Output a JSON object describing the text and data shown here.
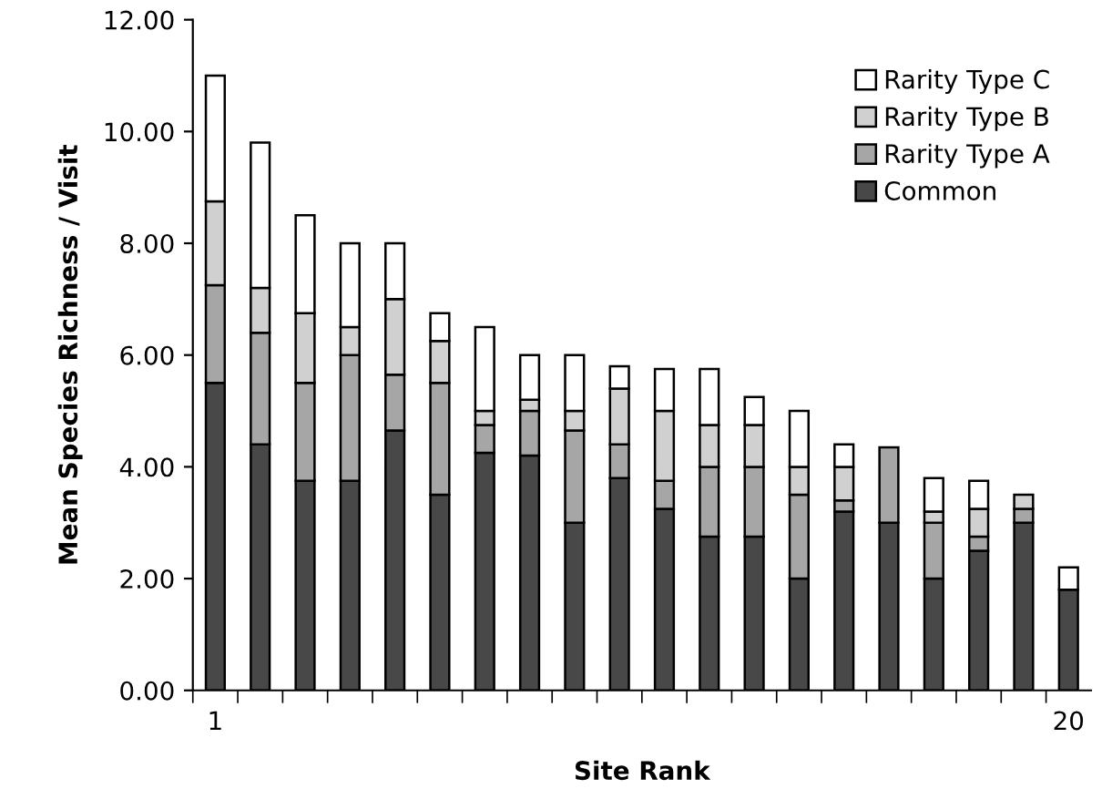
{
  "chart_data": {
    "type": "bar",
    "stacked": true,
    "xlabel": "Site Rank",
    "ylabel": "Mean Species Richness / Visit",
    "categories": [
      "1",
      null,
      null,
      null,
      null,
      null,
      null,
      null,
      null,
      null,
      null,
      null,
      null,
      null,
      null,
      null,
      null,
      null,
      null,
      "20"
    ],
    "series": [
      {
        "name": "Common",
        "color": "#484848",
        "values": [
          5.5,
          4.4,
          3.75,
          3.75,
          4.65,
          3.5,
          4.25,
          4.2,
          3.0,
          3.8,
          3.25,
          2.75,
          2.75,
          2.0,
          3.2,
          3.0,
          2.0,
          2.5,
          3.0,
          1.8
        ]
      },
      {
        "name": "Rarity Type A",
        "color": "#a6a6a6",
        "values": [
          1.75,
          2.0,
          1.75,
          2.25,
          1.0,
          2.0,
          0.5,
          0.8,
          1.65,
          0.6,
          0.5,
          1.25,
          1.25,
          1.5,
          0.2,
          1.35,
          1.0,
          0.25,
          0.25,
          null
        ]
      },
      {
        "name": "Rarity Type B",
        "color": "#d0d0d0",
        "values": [
          1.5,
          0.8,
          1.25,
          0.5,
          1.35,
          0.75,
          0.25,
          0.2,
          0.35,
          1.0,
          1.25,
          0.75,
          0.75,
          0.5,
          0.6,
          null,
          0.2,
          0.5,
          0.25,
          null
        ]
      },
      {
        "name": "Rarity Type C",
        "color": "#ffffff",
        "values": [
          2.25,
          2.6,
          1.75,
          1.5,
          1.0,
          0.5,
          1.5,
          0.8,
          1.0,
          0.4,
          0.75,
          1.0,
          0.5,
          1.0,
          0.4,
          null,
          0.6,
          0.5,
          null,
          0.4
        ]
      }
    ],
    "ylim": [
      0,
      12
    ],
    "yticks": [
      {
        "value": 0,
        "label": "0.00"
      },
      {
        "value": 2,
        "label": "2.00"
      },
      {
        "value": 4,
        "label": "4.00"
      },
      {
        "value": 6,
        "label": "6.00"
      },
      {
        "value": 8,
        "label": "8.00"
      },
      {
        "value": 10,
        "label": "10.00"
      },
      {
        "value": 12,
        "label": "12.00"
      }
    ],
    "legend": "top right",
    "grid": false
  }
}
